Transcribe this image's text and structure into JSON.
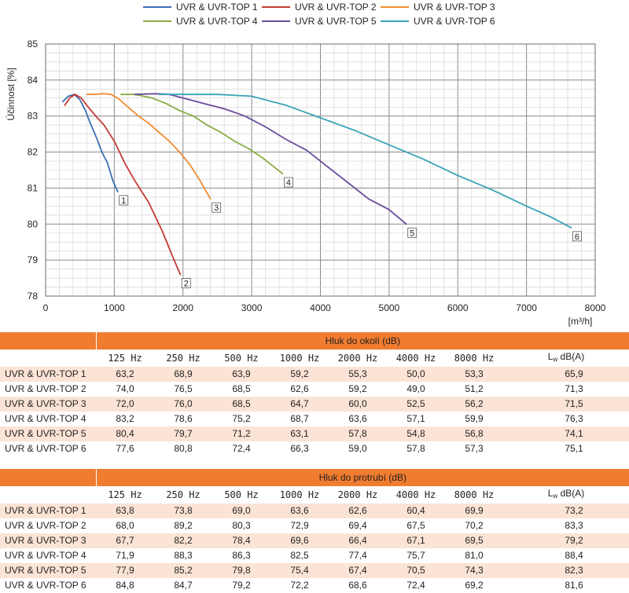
{
  "chart_data": {
    "type": "line",
    "ylabel": "Účinnost [%]",
    "xlabel": "[m³/h]",
    "xlim": [
      0,
      8000
    ],
    "ylim": [
      78,
      85
    ],
    "xticks": [
      "0",
      "1000",
      "2000",
      "3000",
      "4000",
      "5000",
      "6000",
      "7000",
      "8000"
    ],
    "yticks": [
      "78",
      "79",
      "80",
      "81",
      "82",
      "83",
      "84",
      "85"
    ],
    "grid": true,
    "legend_position": "top",
    "series": [
      {
        "name": "UVR & UVR-TOP 1",
        "label": "1",
        "color": "#3d6fb4",
        "x": [
          250,
          330,
          420,
          500,
          580,
          650,
          740,
          820,
          900,
          980,
          1050
        ],
        "y": [
          83.4,
          83.55,
          83.6,
          83.45,
          83.15,
          82.8,
          82.4,
          82.0,
          81.7,
          81.2,
          80.9
        ]
      },
      {
        "name": "UVR & UVR-TOP 2",
        "label": "2",
        "color": "#c53a33",
        "x": [
          280,
          350,
          430,
          520,
          620,
          730,
          850,
          1000,
          1150,
          1300,
          1500,
          1700,
          1850,
          1960
        ],
        "y": [
          83.3,
          83.5,
          83.6,
          83.5,
          83.25,
          83.0,
          82.75,
          82.3,
          81.7,
          81.2,
          80.6,
          79.8,
          79.1,
          78.6
        ]
      },
      {
        "name": "UVR & UVR-TOP 3",
        "label": "3",
        "color": "#f08c32",
        "x": [
          600,
          700,
          850,
          950,
          1050,
          1200,
          1350,
          1500,
          1650,
          1800,
          1950,
          2100,
          2250,
          2400
        ],
        "y": [
          83.6,
          83.6,
          83.62,
          83.6,
          83.5,
          83.25,
          83.0,
          82.8,
          82.55,
          82.3,
          82.0,
          81.65,
          81.2,
          80.7
        ]
      },
      {
        "name": "UVR & UVR-TOP 4",
        "label": "4",
        "color": "#8aac45",
        "x": [
          1100,
          1300,
          1550,
          1750,
          1950,
          2150,
          2350,
          2550,
          2750,
          2950,
          3150,
          3350,
          3450
        ],
        "y": [
          83.6,
          83.6,
          83.5,
          83.35,
          83.15,
          83.0,
          82.75,
          82.55,
          82.3,
          82.1,
          81.85,
          81.55,
          81.4
        ]
      },
      {
        "name": "UVR & UVR-TOP 5",
        "label": "5",
        "color": "#6a4c9c",
        "x": [
          1300,
          1600,
          1800,
          2000,
          2300,
          2600,
          2900,
          3200,
          3500,
          3800,
          4100,
          4400,
          4700,
          5000,
          5250
        ],
        "y": [
          83.6,
          83.62,
          83.6,
          83.5,
          83.35,
          83.2,
          83.0,
          82.7,
          82.35,
          82.05,
          81.6,
          81.15,
          80.7,
          80.4,
          80.0
        ]
      },
      {
        "name": "UVR & UVR-TOP 6",
        "label": "6",
        "color": "#3aa3b8",
        "x": [
          1650,
          2000,
          2500,
          3000,
          3500,
          4000,
          4500,
          5000,
          5500,
          6000,
          6500,
          7000,
          7350,
          7650
        ],
        "y": [
          83.6,
          83.6,
          83.6,
          83.55,
          83.3,
          82.95,
          82.6,
          82.2,
          81.8,
          81.35,
          80.95,
          80.5,
          80.2,
          79.9
        ]
      }
    ]
  },
  "tables": [
    {
      "title": "Hluk do okolí (dB)",
      "columns": [
        "125 Hz",
        "250 Hz",
        "500 Hz",
        "1000 Hz",
        "2000 Hz",
        "4000 Hz",
        "8000 Hz"
      ],
      "lw_main": "L",
      "lw_sub": "w",
      "lw_unit": " dB(A)",
      "rows": [
        {
          "name": "UVR & UVR-TOP 1",
          "values": [
            "63,2",
            "68,9",
            "63,9",
            "59,2",
            "55,3",
            "50,0",
            "53,3"
          ],
          "lw": "65,9"
        },
        {
          "name": "UVR & UVR-TOP 2",
          "values": [
            "74,0",
            "76,5",
            "68,5",
            "62,6",
            "59,2",
            "49,0",
            "51,2"
          ],
          "lw": "71,3"
        },
        {
          "name": "UVR & UVR-TOP 3",
          "values": [
            "72,0",
            "76,0",
            "68,5",
            "64,7",
            "60,0",
            "52,5",
            "56,2"
          ],
          "lw": "71,5"
        },
        {
          "name": "UVR & UVR-TOP 4",
          "values": [
            "83,2",
            "78,6",
            "75,2",
            "68,7",
            "63,6",
            "57,1",
            "59,9"
          ],
          "lw": "76,3"
        },
        {
          "name": "UVR & UVR-TOP 5",
          "values": [
            "80,4",
            "79,7",
            "71,2",
            "63,1",
            "57,8",
            "54,8",
            "56,8"
          ],
          "lw": "74,1"
        },
        {
          "name": "UVR & UVR-TOP 6",
          "values": [
            "77,6",
            "80,8",
            "72,4",
            "66,3",
            "59,0",
            "57,8",
            "57,3"
          ],
          "lw": "75,1"
        }
      ]
    },
    {
      "title": "Hluk do protrubí (dB)",
      "columns": [
        "125 Hz",
        "250 Hz",
        "500 Hz",
        "1000 Hz",
        "2000 Hz",
        "4000 Hz",
        "8000 Hz"
      ],
      "lw_main": "L",
      "lw_sub": "w",
      "lw_unit": " dB(A)",
      "rows": [
        {
          "name": "UVR & UVR-TOP 1",
          "values": [
            "63,8",
            "73,8",
            "69,0",
            "63,6",
            "62,6",
            "60,4",
            "69,9"
          ],
          "lw": "73,2"
        },
        {
          "name": "UVR & UVR-TOP 2",
          "values": [
            "68,0",
            "89,2",
            "80,3",
            "72,9",
            "69,4",
            "67,5",
            "70,2"
          ],
          "lw": "83,3"
        },
        {
          "name": "UVR & UVR-TOP 3",
          "values": [
            "67,7",
            "82,2",
            "78,4",
            "69,6",
            "66,4",
            "67,1",
            "69,5"
          ],
          "lw": "79,2"
        },
        {
          "name": "UVR & UVR-TOP 4",
          "values": [
            "71,9",
            "88,3",
            "86,3",
            "82,5",
            "77,4",
            "75,7",
            "81,0"
          ],
          "lw": "88,4"
        },
        {
          "name": "UVR & UVR-TOP 5",
          "values": [
            "77,9",
            "85,2",
            "79,8",
            "75,4",
            "67,4",
            "70,5",
            "74,3"
          ],
          "lw": "82,3"
        },
        {
          "name": "UVR & UVR-TOP 6",
          "values": [
            "84,8",
            "84,7",
            "79,2",
            "72,2",
            "68,6",
            "72,4",
            "69,2"
          ],
          "lw": "81,6"
        }
      ]
    }
  ]
}
